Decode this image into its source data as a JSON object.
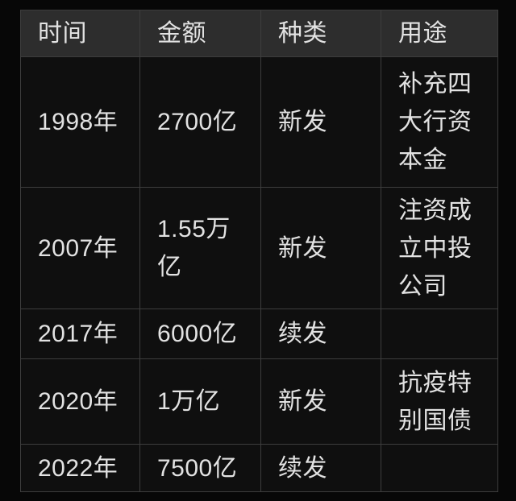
{
  "colors": {
    "page_bg": "#070707",
    "header_bg": "#2d2d2d",
    "cell_bg": "#0f0f0f",
    "border": "#3d3d3d",
    "text": "#e2e2e2"
  },
  "chart_data": {
    "type": "table",
    "columns": [
      "时间",
      "金额",
      "种类",
      "用途"
    ],
    "rows": [
      [
        "1998年",
        "2700亿",
        "新发",
        "补充四大行资本金"
      ],
      [
        "2007年",
        "1.55万亿",
        "新发",
        "注资成立中投公司"
      ],
      [
        "2017年",
        "6000亿",
        "续发",
        ""
      ],
      [
        "2020年",
        "1万亿",
        "新发",
        "抗疫特别国债"
      ],
      [
        "2022年",
        "7500亿",
        "续发",
        ""
      ]
    ]
  },
  "table": {
    "headers": [
      "时间",
      "金额",
      "种类",
      "用途"
    ],
    "rows": [
      {
        "time": "1998年",
        "amount": "2700亿",
        "type": "新发",
        "purpose": "补充四大行资本金"
      },
      {
        "time": "2007年",
        "amount": "1.55万亿",
        "type": "新发",
        "purpose": "注资成立中投公司"
      },
      {
        "time": "2017年",
        "amount": "6000亿",
        "type": "续发",
        "purpose": ""
      },
      {
        "time": "2020年",
        "amount": "1万亿",
        "type": "新发",
        "purpose": "抗疫特别国债"
      },
      {
        "time": "2022年",
        "amount": "7500亿",
        "type": "续发",
        "purpose": ""
      }
    ]
  }
}
